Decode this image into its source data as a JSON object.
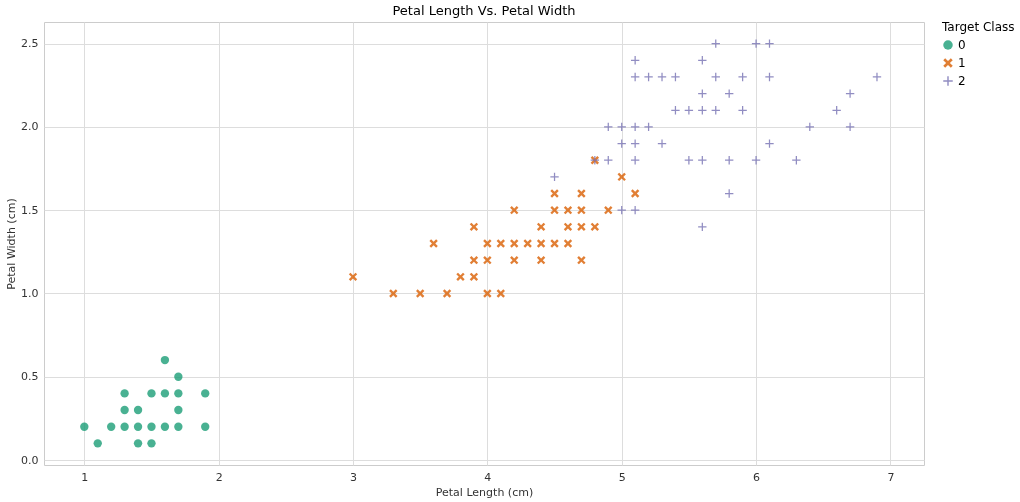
{
  "chart_data": {
    "type": "scatter",
    "title": "Petal Length Vs. Petal Width",
    "xlabel": "Petal Length (cm)",
    "ylabel": "Petal Width (cm)",
    "legend_title": "Target Class",
    "xlim": [
      0.7,
      7.25
    ],
    "xticks": [
      1,
      2,
      3,
      4,
      5,
      6,
      7
    ],
    "ylim": [
      -0.03,
      2.63
    ],
    "yticks": [
      {
        "value": 0,
        "label": "0.0"
      },
      0.5,
      {
        "value": 1,
        "label": "1.0"
      },
      1.5,
      {
        "value": 2,
        "label": "2.0"
      },
      2.5
    ],
    "grid": true,
    "legend": "right",
    "series": [
      {
        "name": "0",
        "color": "#1b9e77",
        "marker": "circle",
        "x": [
          1.0,
          1.1,
          1.2,
          1.3,
          1.3,
          1.3,
          1.4,
          1.4,
          1.4,
          1.5,
          1.5,
          1.5,
          1.6,
          1.6,
          1.6,
          1.7,
          1.7,
          1.7,
          1.7,
          1.9,
          1.9
        ],
        "values": [
          0.2,
          0.1,
          0.2,
          0.2,
          0.3,
          0.4,
          0.1,
          0.2,
          0.3,
          0.1,
          0.2,
          0.4,
          0.2,
          0.4,
          0.6,
          0.2,
          0.3,
          0.4,
          0.5,
          0.2,
          0.4
        ]
      },
      {
        "name": "1",
        "color": "#d95f02",
        "marker": "cross",
        "x": [
          3.0,
          3.3,
          3.5,
          3.6,
          3.7,
          3.8,
          3.9,
          3.9,
          3.9,
          4.0,
          4.0,
          4.0,
          4.1,
          4.1,
          4.2,
          4.2,
          4.2,
          4.3,
          4.4,
          4.4,
          4.4,
          4.5,
          4.5,
          4.5,
          4.6,
          4.6,
          4.6,
          4.7,
          4.7,
          4.7,
          4.7,
          4.8,
          4.8,
          4.9,
          5.0,
          5.1
        ],
        "values": [
          1.1,
          1.0,
          1.0,
          1.3,
          1.0,
          1.1,
          1.1,
          1.2,
          1.4,
          1.0,
          1.2,
          1.3,
          1.0,
          1.3,
          1.2,
          1.3,
          1.5,
          1.3,
          1.2,
          1.3,
          1.4,
          1.3,
          1.5,
          1.6,
          1.3,
          1.4,
          1.5,
          1.2,
          1.4,
          1.5,
          1.6,
          1.4,
          1.8,
          1.5,
          1.7,
          1.6
        ]
      },
      {
        "name": "2",
        "color": "#7570b3",
        "marker": "plus",
        "x": [
          4.5,
          4.8,
          4.9,
          4.9,
          5.0,
          5.0,
          5.0,
          5.1,
          5.1,
          5.1,
          5.1,
          5.1,
          5.1,
          5.2,
          5.2,
          5.3,
          5.3,
          5.4,
          5.4,
          5.5,
          5.5,
          5.6,
          5.6,
          5.6,
          5.6,
          5.6,
          5.7,
          5.7,
          5.7,
          5.8,
          5.8,
          5.8,
          5.9,
          5.9,
          6.0,
          6.0,
          6.1,
          6.1,
          6.1,
          6.3,
          6.4,
          6.6,
          6.7,
          6.7,
          6.9
        ],
        "values": [
          1.7,
          1.8,
          1.8,
          2.0,
          1.5,
          1.9,
          2.0,
          1.5,
          1.8,
          1.9,
          2.0,
          2.3,
          2.4,
          2.0,
          2.3,
          1.9,
          2.3,
          2.1,
          2.3,
          1.8,
          2.1,
          1.4,
          1.8,
          2.1,
          2.2,
          2.4,
          2.1,
          2.3,
          2.5,
          1.6,
          1.8,
          2.2,
          2.1,
          2.3,
          1.8,
          2.5,
          1.9,
          2.3,
          2.5,
          1.8,
          2.0,
          2.1,
          2.0,
          2.2,
          2.3
        ]
      }
    ]
  }
}
